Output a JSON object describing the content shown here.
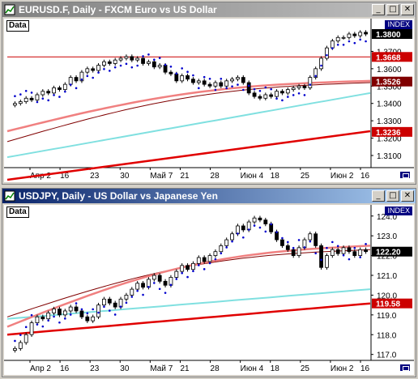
{
  "windows": [
    {
      "title": "EURUSD.F, Daily - FXCM Euro vs US Dollar",
      "active": false,
      "data_label": "Data",
      "index_label": "INDEX",
      "chart_data": {
        "type": "candlestick",
        "x_labels": [
          "Апр 2",
          "16",
          "23",
          "30",
          "Май 7",
          "21",
          "28",
          "Июн 4",
          "18",
          "25",
          "Июн 2",
          "16"
        ],
        "y_ticks": [
          1.31,
          1.32,
          1.33,
          1.34,
          1.35,
          1.36,
          1.37
        ],
        "ylim": [
          1.303,
          1.387
        ],
        "price_labels": [
          {
            "value": 1.38,
            "text": "1.3800",
            "bg": "#000000",
            "color": "#ffffff"
          },
          {
            "value": 1.3668,
            "text": "1.3668",
            "bg": "#cc0000",
            "color": "#ffffff"
          },
          {
            "value": 1.3526,
            "text": "1.3526",
            "bg": "#800000",
            "color": "#ffffff"
          },
          {
            "value": 1.3236,
            "text": "1.3236",
            "bg": "#cc0000",
            "color": "#ffffff"
          }
        ],
        "hline": 1.3668,
        "closes": [
          1.34,
          1.341,
          1.343,
          1.342,
          1.345,
          1.347,
          1.346,
          1.349,
          1.348,
          1.351,
          1.355,
          1.353,
          1.358,
          1.36,
          1.359,
          1.362,
          1.364,
          1.363,
          1.365,
          1.366,
          1.367,
          1.365,
          1.366,
          1.363,
          1.364,
          1.361,
          1.362,
          1.358,
          1.357,
          1.353,
          1.356,
          1.354,
          1.352,
          1.353,
          1.351,
          1.35,
          1.352,
          1.35,
          1.353,
          1.354,
          1.355,
          1.352,
          1.346,
          1.344,
          1.343,
          1.345,
          1.344,
          1.347,
          1.346,
          1.348,
          1.349,
          1.35,
          1.349,
          1.355,
          1.36,
          1.366,
          1.372,
          1.376,
          1.378,
          1.378,
          1.38,
          1.379,
          1.381,
          1.38
        ],
        "ma_pink": {
          "start": 1.324,
          "end": 1.353,
          "color": "#f08080"
        },
        "ma_maroon": {
          "start": 1.318,
          "end": 1.352,
          "color": "#800000"
        },
        "ma_cyan": {
          "start": 1.309,
          "end": 1.346,
          "color": "#80e0e0"
        },
        "ma_red": {
          "start": 1.296,
          "end": 1.324,
          "color": "#e00000"
        }
      }
    },
    {
      "title": "USDJPY, Daily - US Dollar vs Japanese Yen",
      "active": true,
      "data_label": "Data",
      "index_label": "INDEX",
      "chart_data": {
        "type": "candlestick",
        "x_labels": [
          "Апр 2",
          "16",
          "23",
          "30",
          "Май 7",
          "21",
          "28",
          "Июн 4",
          "18",
          "25",
          "Июн 2",
          "16"
        ],
        "y_ticks": [
          117.0,
          118.0,
          119.0,
          120.0,
          121.0,
          122.0,
          123.0,
          124.0
        ],
        "ylim": [
          116.7,
          124.4
        ],
        "price_labels": [
          {
            "value": 122.2,
            "text": "122.20",
            "bg": "#000000",
            "color": "#ffffff"
          },
          {
            "value": 119.58,
            "text": "119.58",
            "bg": "#cc0000",
            "color": "#ffffff"
          }
        ],
        "hline": null,
        "closes": [
          117.3,
          117.6,
          118.0,
          118.6,
          118.9,
          118.8,
          119.1,
          119.3,
          119.0,
          119.2,
          119.4,
          119.2,
          118.9,
          118.7,
          118.9,
          119.5,
          119.8,
          119.6,
          119.4,
          119.8,
          120.0,
          120.3,
          120.6,
          120.4,
          120.8,
          121.0,
          120.7,
          120.5,
          120.9,
          121.2,
          121.5,
          121.3,
          121.6,
          121.9,
          121.7,
          122.0,
          122.2,
          122.5,
          122.8,
          123.1,
          123.5,
          123.3,
          123.7,
          123.9,
          123.8,
          123.6,
          123.2,
          122.8,
          122.5,
          122.3,
          122.0,
          122.4,
          122.8,
          123.1,
          122.5,
          121.4,
          122.0,
          122.3,
          122.1,
          122.4,
          122.2,
          122.0,
          122.3,
          122.2
        ],
        "ma_pink": {
          "start": 118.4,
          "end": 122.5,
          "color": "#f08080"
        },
        "ma_maroon": {
          "start": 118.9,
          "end": 122.3,
          "color": "#800000"
        },
        "ma_cyan": {
          "start": 118.8,
          "end": 120.3,
          "color": "#80e0e0"
        },
        "ma_red": {
          "start": 118.0,
          "end": 119.58,
          "color": "#e00000"
        }
      }
    }
  ]
}
